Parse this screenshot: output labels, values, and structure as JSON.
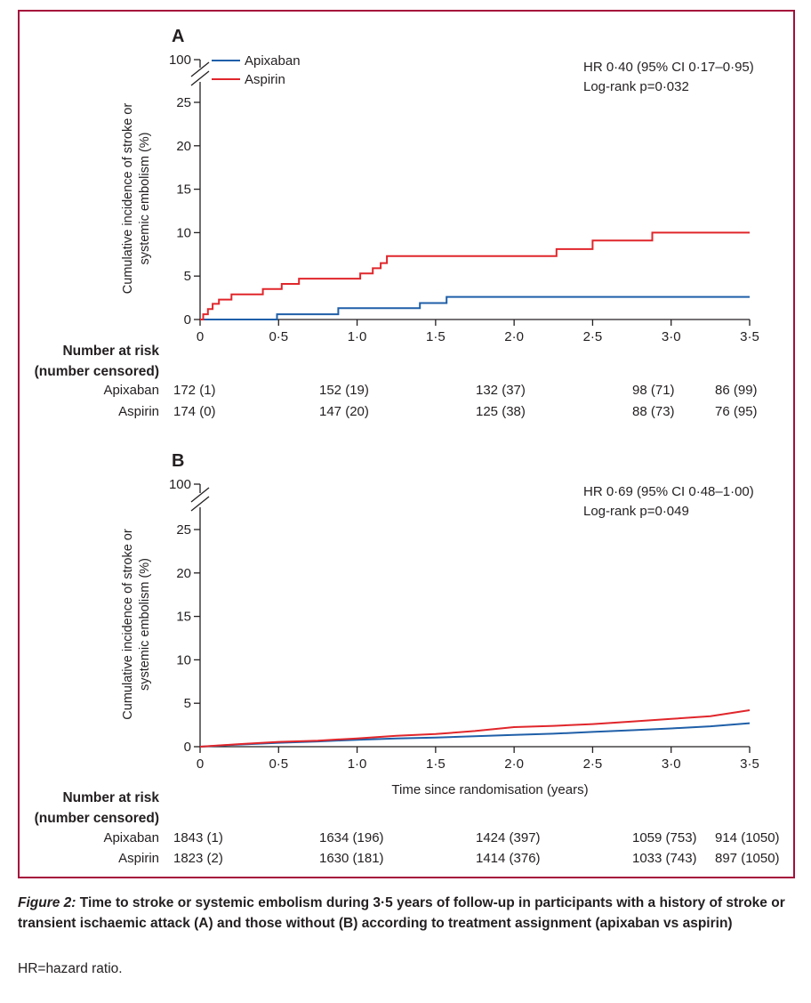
{
  "figure": {
    "caption_label": "Figure 2:",
    "caption_text": "Time to stroke or systemic embolism during 3·5 years of follow-up in participants with a history of stroke or transient ischaemic attack (A) and those without (B) according to treatment assignment (apixaban vs aspirin)",
    "abbreviation_note": "HR=hazard ratio.",
    "xlabel": "Time since randomisation (years)",
    "risk_table_title": "Number at risk",
    "risk_table_subtitle": "(number censored)"
  },
  "colors": {
    "apixaban": "#1f5fa8",
    "aspirin": "#e0262b",
    "frame": "#a50d3c"
  },
  "chart_data": [
    {
      "type": "line",
      "panel_label": "A",
      "ylabel_line1": "Cumulative incidence of stroke or",
      "ylabel_line2": "systemic embolism (%)",
      "y_ticks": [
        "0",
        "5",
        "10",
        "15",
        "20",
        "25",
        "100"
      ],
      "x_ticks": [
        "0",
        "0·5",
        "1·0",
        "1·5",
        "2·0",
        "2·5",
        "3·0",
        "3·5"
      ],
      "xlim": [
        0,
        3.5
      ],
      "ylim": [
        0,
        25
      ],
      "y_break": true,
      "annotation": [
        "HR 0·40 (95% CI 0·17–0·95)",
        "Log-rank p=0·032"
      ],
      "legend": [
        "Apixaban",
        "Aspirin"
      ],
      "series": [
        {
          "name": "Apixaban",
          "x": [
            0,
            0.49,
            0.49,
            0.88,
            0.88,
            1.4,
            1.4,
            1.57,
            1.57,
            3.5
          ],
          "y": [
            0,
            0,
            0.6,
            0.6,
            1.3,
            1.3,
            1.9,
            1.9,
            2.6,
            2.6
          ]
        },
        {
          "name": "Aspirin",
          "x": [
            0,
            0.02,
            0.02,
            0.05,
            0.05,
            0.08,
            0.08,
            0.12,
            0.12,
            0.2,
            0.2,
            0.4,
            0.4,
            0.52,
            0.52,
            0.63,
            0.63,
            1.02,
            1.02,
            1.1,
            1.1,
            1.15,
            1.15,
            1.19,
            1.19,
            2.27,
            2.27,
            2.5,
            2.5,
            2.88,
            2.88,
            3.5
          ],
          "y": [
            0,
            0,
            0.6,
            0.6,
            1.2,
            1.2,
            1.8,
            1.8,
            2.3,
            2.3,
            2.9,
            2.9,
            3.5,
            3.5,
            4.1,
            4.1,
            4.7,
            4.7,
            5.3,
            5.3,
            5.9,
            5.9,
            6.5,
            6.5,
            7.3,
            7.3,
            8.1,
            8.1,
            9.1,
            9.1,
            10.0,
            10.0
          ]
        }
      ],
      "risk_rows": [
        {
          "label": "Apixaban",
          "values": [
            "172 (1)",
            "152 (19)",
            "132 (37)",
            "98 (71)",
            "86 (99)"
          ]
        },
        {
          "label": "Aspirin",
          "values": [
            "174 (0)",
            "147 (20)",
            "125 (38)",
            "88 (73)",
            "76 (95)"
          ]
        }
      ],
      "risk_times": [
        0,
        1,
        2,
        3,
        3.5
      ]
    },
    {
      "type": "line",
      "panel_label": "B",
      "ylabel_line1": "Cumulative incidence of stroke or",
      "ylabel_line2": "systemic embolism (%)",
      "y_ticks": [
        "0",
        "5",
        "10",
        "15",
        "20",
        "25",
        "100"
      ],
      "x_ticks": [
        "0",
        "0·5",
        "1·0",
        "1·5",
        "2·0",
        "2·5",
        "3·0",
        "3·5"
      ],
      "xlim": [
        0,
        3.5
      ],
      "ylim": [
        0,
        25
      ],
      "y_break": true,
      "annotation": [
        "HR 0·69 (95% CI 0·48–1·00)",
        "Log-rank p=0·049"
      ],
      "legend": [],
      "series": [
        {
          "name": "Apixaban",
          "x": [
            0,
            0.25,
            0.5,
            0.75,
            1.0,
            1.25,
            1.5,
            1.75,
            2.0,
            2.25,
            2.5,
            2.75,
            3.0,
            3.25,
            3.5
          ],
          "y": [
            0,
            0.25,
            0.45,
            0.6,
            0.8,
            0.95,
            1.05,
            1.2,
            1.35,
            1.5,
            1.7,
            1.9,
            2.1,
            2.35,
            2.7
          ]
        },
        {
          "name": "Aspirin",
          "x": [
            0,
            0.25,
            0.5,
            0.75,
            1.0,
            1.25,
            1.5,
            1.75,
            2.0,
            2.25,
            2.5,
            2.75,
            3.0,
            3.25,
            3.5
          ],
          "y": [
            0,
            0.3,
            0.55,
            0.7,
            0.95,
            1.25,
            1.45,
            1.8,
            2.25,
            2.4,
            2.6,
            2.9,
            3.2,
            3.5,
            4.2
          ]
        }
      ],
      "risk_rows": [
        {
          "label": "Apixaban",
          "values": [
            "1843 (1)",
            "1634 (196)",
            "1424 (397)",
            "1059 (753)",
            "914 (1050)"
          ]
        },
        {
          "label": "Aspirin",
          "values": [
            "1823 (2)",
            "1630 (181)",
            "1414 (376)",
            "1033 (743)",
            "897 (1050)"
          ]
        }
      ],
      "risk_times": [
        0,
        1,
        2,
        3,
        3.5
      ]
    }
  ]
}
